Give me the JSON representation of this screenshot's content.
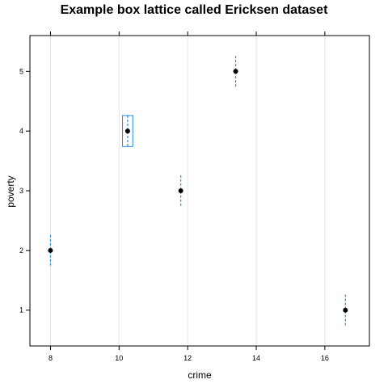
{
  "chart_data": {
    "type": "box",
    "title": "Example box lattice called Ericksen dataset",
    "xlabel": "crime",
    "ylabel": "poverty",
    "xlim": [
      7.4,
      17.3
    ],
    "ylim": [
      0.4,
      5.6
    ],
    "xticks": [
      8,
      10,
      12,
      14,
      16
    ],
    "yticks": [
      1,
      2,
      3,
      4,
      5
    ],
    "grid": "vertical",
    "colors": {
      "box": "#1f8ef0",
      "median": "#000000",
      "grid": "#e6e6e6"
    },
    "boxes": [
      {
        "category": 1,
        "min": 16.6,
        "q1": 16.6,
        "median": 16.6,
        "q3": 16.6,
        "max": 16.6
      },
      {
        "category": 2,
        "min": 8.0,
        "q1": 8.0,
        "median": 8.0,
        "q3": 8.0,
        "max": 8.0
      },
      {
        "category": 3,
        "min": 11.8,
        "q1": 11.8,
        "median": 11.8,
        "q3": 11.8,
        "max": 11.8
      },
      {
        "category": 4,
        "min": 10.1,
        "q1": 10.1,
        "median": 10.25,
        "q3": 10.4,
        "max": 10.4
      },
      {
        "category": 5,
        "min": 13.4,
        "q1": 13.4,
        "median": 13.4,
        "q3": 13.4,
        "max": 13.4
      }
    ]
  }
}
